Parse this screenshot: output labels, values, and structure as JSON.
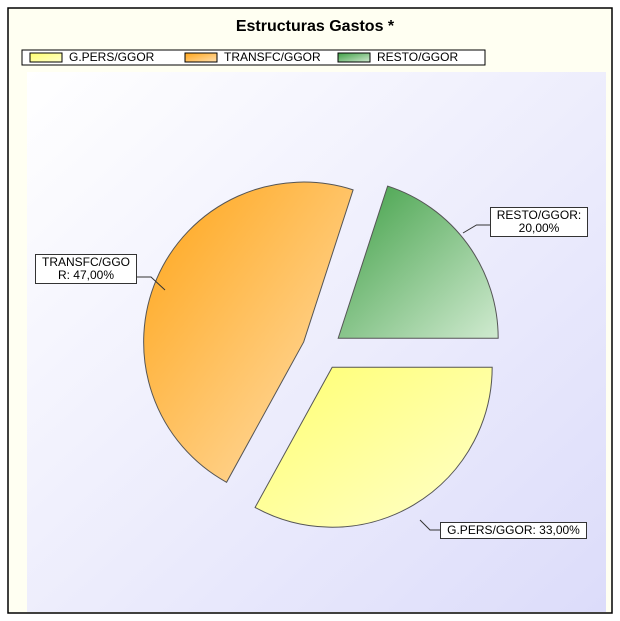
{
  "chart_data": {
    "type": "pie",
    "title": "Estructuras Gastos *",
    "categories": [
      "G.PERS/GGOR",
      "TRANSFC/GGOR",
      "RESTO/GGOR"
    ],
    "values": [
      33,
      47,
      20
    ],
    "value_labels": [
      "G.PERS/GGOR: 33,00%",
      "TRANSFC/GGOR: 47,00%",
      "RESTO/GGOR: 20,00%"
    ],
    "colors": [
      "#ffff80",
      "#ffb030",
      "#5aad5a"
    ],
    "legend": "top"
  }
}
